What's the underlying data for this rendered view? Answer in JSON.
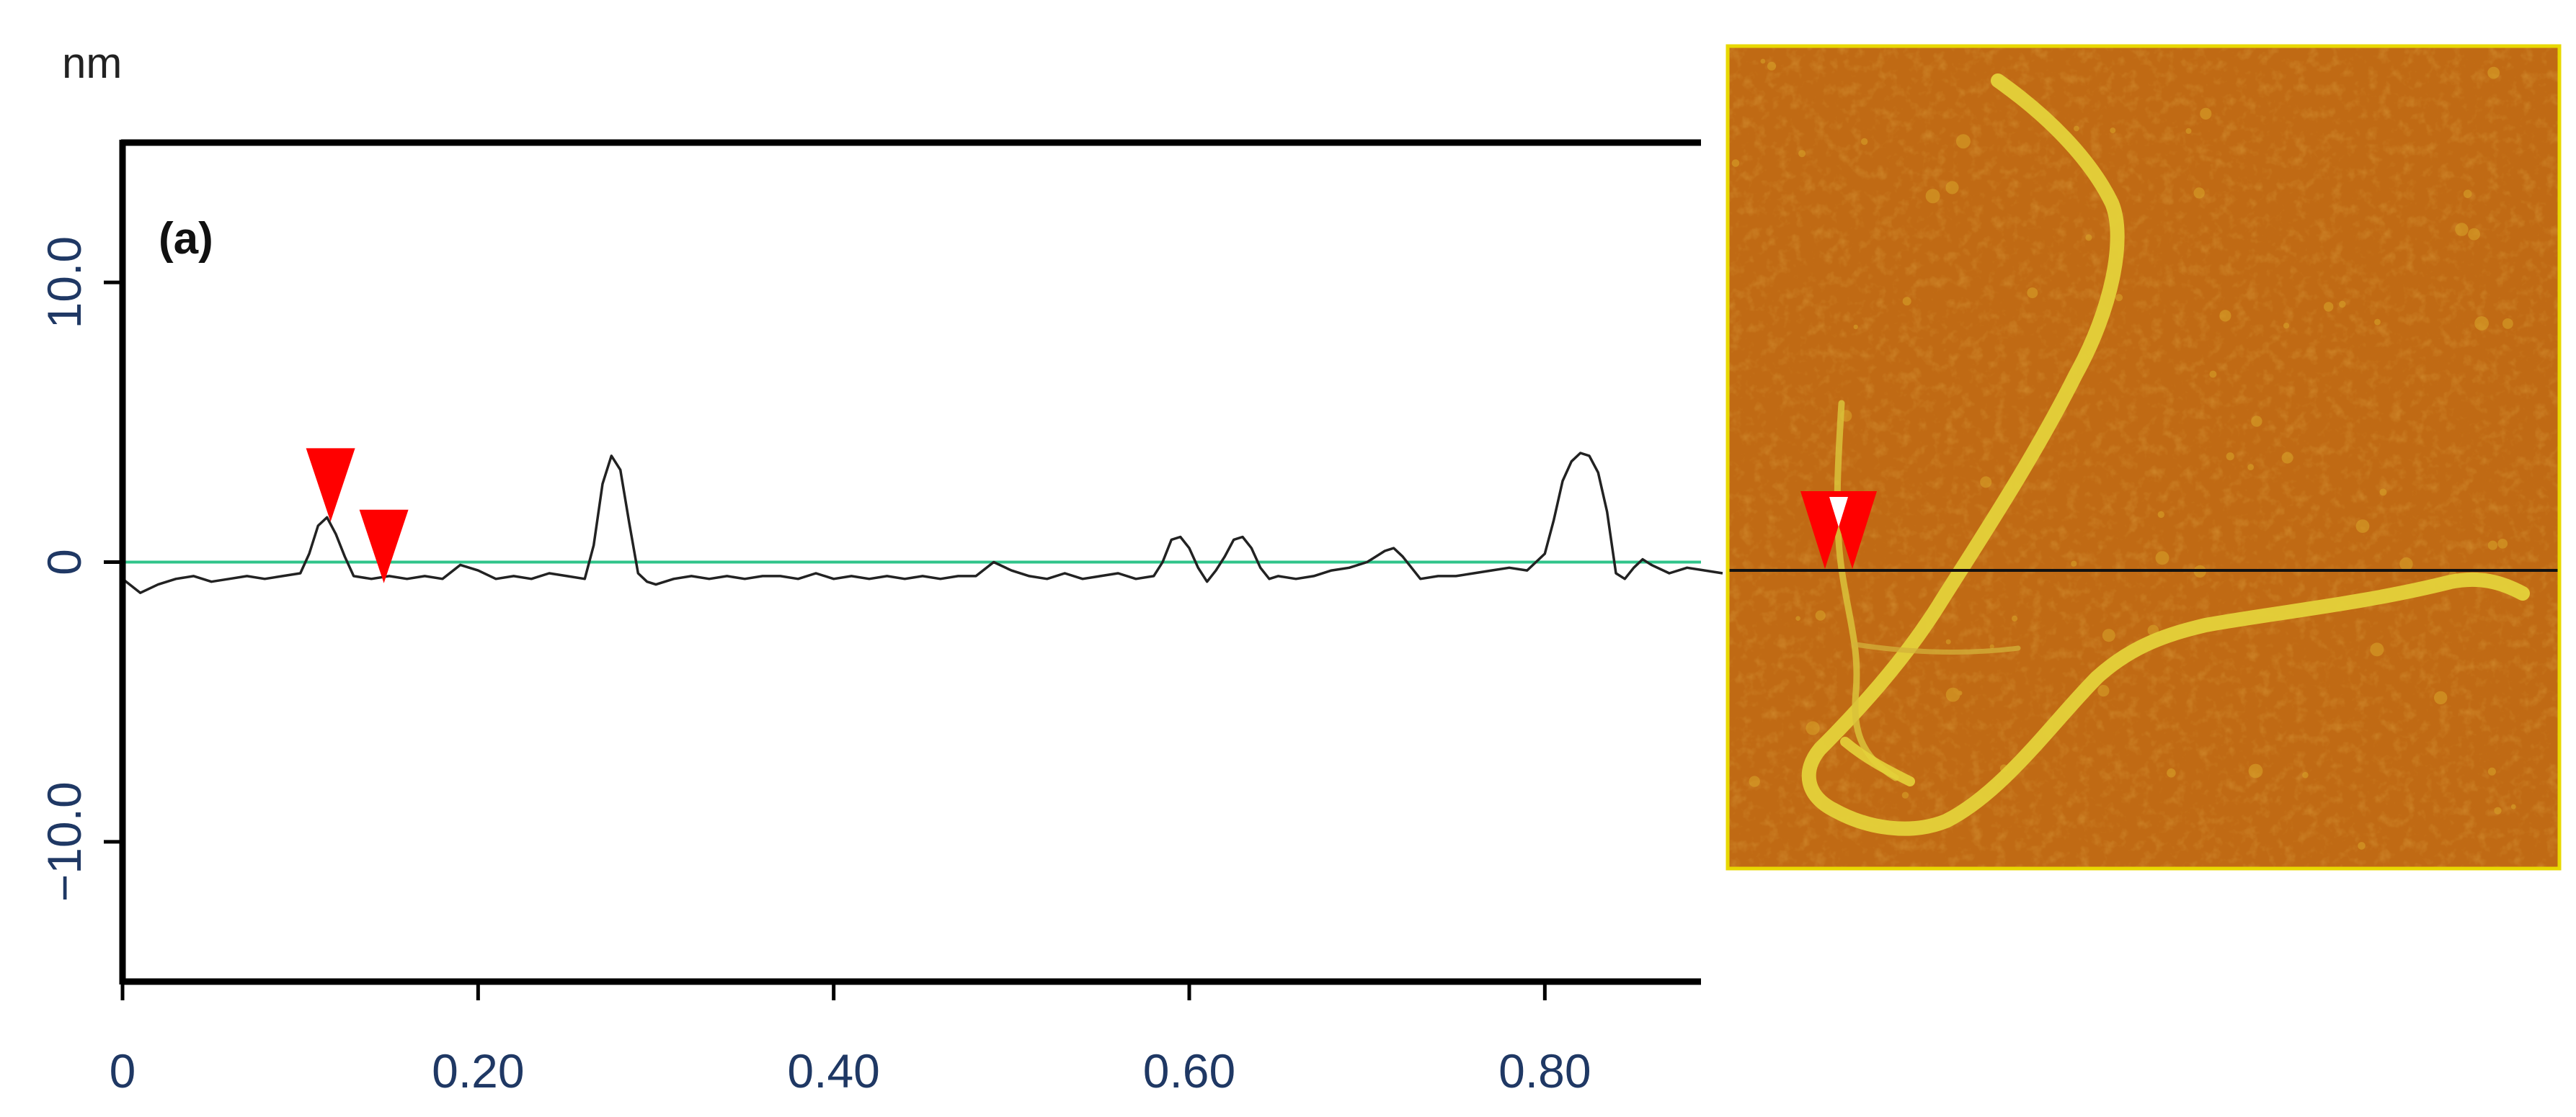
{
  "panel_label": "(a)",
  "chart_data": {
    "type": "line",
    "title": "",
    "xlabel": "",
    "ylabel": "nm",
    "xlim": [
      0,
      0.9
    ],
    "ylim": [
      -15,
      15
    ],
    "x_ticks": [
      {
        "value": 0,
        "label": "0"
      },
      {
        "value": 0.2,
        "label": "0.20"
      },
      {
        "value": 0.4,
        "label": "0.40"
      },
      {
        "value": 0.6,
        "label": "0.60"
      },
      {
        "value": 0.8,
        "label": "0.80"
      }
    ],
    "y_ticks": [
      {
        "value": 10,
        "label": "10.0"
      },
      {
        "value": 0,
        "label": "0"
      },
      {
        "value": -10,
        "label": "−10.0"
      }
    ],
    "grid": false,
    "reference_line": {
      "y": 0,
      "color": "#2fc48a"
    },
    "series": [
      {
        "color": "#222222",
        "x": [
          0.0,
          0.01,
          0.02,
          0.03,
          0.04,
          0.05,
          0.06,
          0.07,
          0.08,
          0.09,
          0.1,
          0.105,
          0.11,
          0.115,
          0.12,
          0.125,
          0.13,
          0.14,
          0.15,
          0.16,
          0.17,
          0.18,
          0.19,
          0.2,
          0.21,
          0.22,
          0.23,
          0.24,
          0.25,
          0.26,
          0.265,
          0.27,
          0.275,
          0.28,
          0.285,
          0.29,
          0.295,
          0.3,
          0.31,
          0.32,
          0.33,
          0.34,
          0.35,
          0.36,
          0.37,
          0.38,
          0.39,
          0.4,
          0.41,
          0.42,
          0.43,
          0.44,
          0.45,
          0.46,
          0.47,
          0.48,
          0.49,
          0.5,
          0.51,
          0.52,
          0.53,
          0.54,
          0.55,
          0.56,
          0.57,
          0.58,
          0.585,
          0.59,
          0.595,
          0.6,
          0.605,
          0.61,
          0.615,
          0.62,
          0.625,
          0.63,
          0.635,
          0.64,
          0.645,
          0.65,
          0.66,
          0.67,
          0.68,
          0.69,
          0.7,
          0.71,
          0.715,
          0.72,
          0.73,
          0.74,
          0.75,
          0.76,
          0.77,
          0.78,
          0.79,
          0.8,
          0.805,
          0.81,
          0.815,
          0.82,
          0.825,
          0.83,
          0.835,
          0.84,
          0.845,
          0.85,
          0.855,
          0.86,
          0.87,
          0.88,
          0.89,
          0.9
        ],
        "y": [
          -0.6,
          -1.1,
          -0.8,
          -0.6,
          -0.5,
          -0.7,
          -0.6,
          -0.5,
          -0.6,
          -0.5,
          -0.4,
          0.3,
          1.3,
          1.6,
          1.0,
          0.2,
          -0.5,
          -0.6,
          -0.5,
          -0.6,
          -0.5,
          -0.6,
          -0.1,
          -0.3,
          -0.6,
          -0.5,
          -0.6,
          -0.4,
          -0.5,
          -0.6,
          0.6,
          2.8,
          3.8,
          3.3,
          1.4,
          -0.4,
          -0.7,
          -0.8,
          -0.6,
          -0.5,
          -0.6,
          -0.5,
          -0.6,
          -0.5,
          -0.5,
          -0.6,
          -0.4,
          -0.6,
          -0.5,
          -0.6,
          -0.5,
          -0.6,
          -0.5,
          -0.6,
          -0.5,
          -0.5,
          0.0,
          -0.3,
          -0.5,
          -0.6,
          -0.4,
          -0.6,
          -0.5,
          -0.4,
          -0.6,
          -0.5,
          0.0,
          0.8,
          0.9,
          0.5,
          -0.2,
          -0.7,
          -0.3,
          0.2,
          0.8,
          0.9,
          0.5,
          -0.2,
          -0.6,
          -0.5,
          -0.6,
          -0.5,
          -0.3,
          -0.2,
          0.0,
          0.4,
          0.5,
          0.2,
          -0.6,
          -0.5,
          -0.5,
          -0.4,
          -0.3,
          -0.2,
          -0.3,
          0.3,
          1.5,
          2.9,
          3.6,
          3.9,
          3.8,
          3.2,
          1.8,
          -0.4,
          -0.6,
          -0.2,
          0.1,
          -0.1,
          -0.4,
          -0.2,
          -0.3,
          -0.4
        ]
      }
    ],
    "markers": [
      {
        "x": 0.117,
        "y": 1.6,
        "color": "#ff0000"
      },
      {
        "x": 0.147,
        "y": -0.6,
        "color": "#ff0000"
      }
    ]
  },
  "afm_image": {
    "background_color": "#c06a14",
    "fiber_color": "#e4d23a",
    "border_color": "#e8d800",
    "scan_line_color": "#111111",
    "marker_color": "#ff0000",
    "marker_inner_color": "#ffffff"
  }
}
